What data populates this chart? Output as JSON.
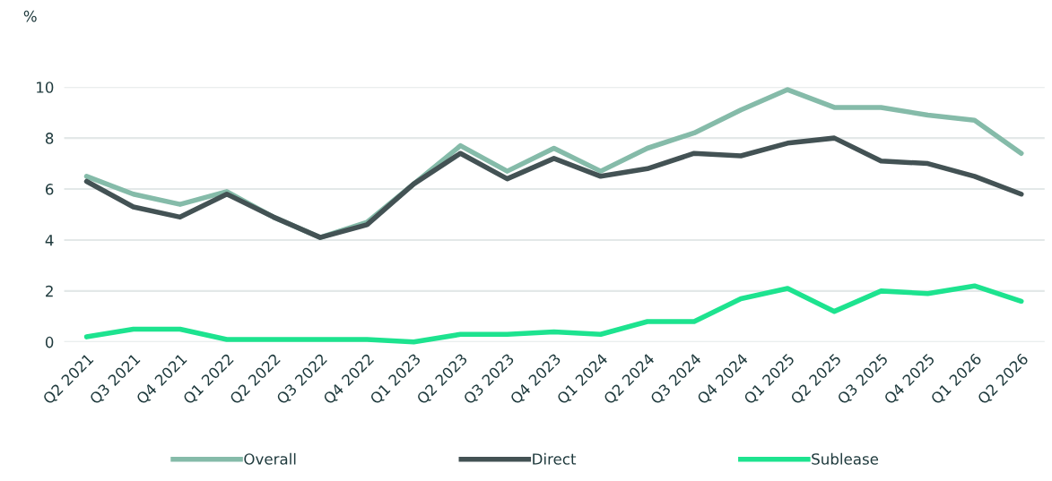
{
  "chart_data": {
    "type": "line",
    "ylabel": "%",
    "categories": [
      "Q2 2021",
      "Q3 2021",
      "Q4 2021",
      "Q1 2022",
      "Q2 2022",
      "Q3 2022",
      "Q4 2022",
      "Q1 2023",
      "Q2 2023",
      "Q3 2023",
      "Q4 2023",
      "Q1 2024",
      "Q2 2024",
      "Q3 2024",
      "Q4 2024",
      "Q1 2025",
      "Q2 2025",
      "Q3 2025",
      "Q4 2025",
      "Q1 2026",
      "Q2 2026"
    ],
    "series": [
      {
        "name": "Overall",
        "color": "#85bba9",
        "values": [
          6.5,
          5.8,
          5.4,
          5.9,
          4.9,
          4.1,
          4.7,
          6.2,
          7.7,
          6.7,
          7.6,
          6.7,
          7.6,
          8.2,
          9.1,
          9.9,
          9.2,
          9.2,
          8.9,
          8.7,
          7.4
        ]
      },
      {
        "name": "Direct",
        "color": "#435254",
        "values": [
          6.3,
          5.3,
          4.9,
          5.8,
          4.9,
          4.1,
          4.6,
          6.2,
          7.4,
          6.4,
          7.2,
          6.5,
          6.8,
          7.4,
          7.3,
          7.8,
          8.0,
          7.1,
          7.0,
          6.5,
          5.8
        ]
      },
      {
        "name": "Sublease",
        "color": "#1de38f",
        "values": [
          0.2,
          0.5,
          0.5,
          0.1,
          0.1,
          0.1,
          0.1,
          0.0,
          0.3,
          0.3,
          0.4,
          0.3,
          0.8,
          0.8,
          1.7,
          2.1,
          1.2,
          2.0,
          1.9,
          2.2,
          1.6
        ]
      }
    ],
    "ylim": [
      0,
      10
    ],
    "yticks": [
      0,
      2,
      4,
      6,
      8,
      10
    ],
    "grid": "y",
    "legend": "bottom",
    "marker": "none",
    "line_style": "solid"
  }
}
